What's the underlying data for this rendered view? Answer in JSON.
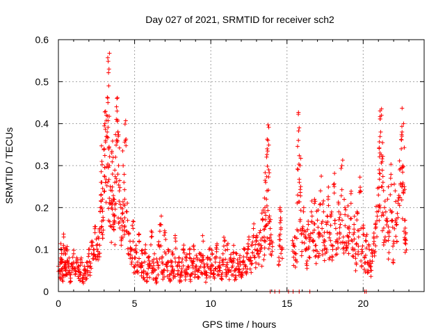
{
  "chart_data": {
    "type": "scatter",
    "title": "Day 027 of 2021, SRMTID for receiver sch2",
    "xlabel": "GPS time / hours",
    "ylabel": "SRMTID / TECUs",
    "xlim": [
      0,
      24
    ],
    "ylim": [
      0,
      0.6
    ],
    "xticks": [
      0,
      5,
      10,
      15,
      20
    ],
    "yticks": [
      0,
      0.1,
      0.2,
      0.3,
      0.4,
      0.5,
      0.6
    ],
    "xtick_labels": [
      "0",
      "5",
      "10",
      "15",
      "20"
    ],
    "ytick_labels": [
      "0",
      "0.1",
      "0.2",
      "0.3",
      "0.4",
      "0.5",
      "0.6"
    ],
    "grid": true,
    "marker": "+",
    "color": "#ff0000",
    "series": [
      {
        "name": "sch2",
        "points": [
          [
            0.0,
            0.06
          ],
          [
            0.1,
            0.05
          ],
          [
            0.15,
            0.08
          ],
          [
            0.2,
            0.1
          ],
          [
            0.25,
            0.07
          ],
          [
            0.3,
            0.04
          ],
          [
            0.35,
            0.13
          ],
          [
            0.4,
            0.06
          ],
          [
            0.45,
            0.09
          ],
          [
            0.5,
            0.05
          ],
          [
            0.55,
            0.1
          ],
          [
            0.6,
            0.07
          ],
          [
            0.7,
            0.08
          ],
          [
            0.8,
            0.04
          ],
          [
            0.9,
            0.06
          ],
          [
            1.0,
            0.09
          ],
          [
            1.1,
            0.05
          ],
          [
            1.2,
            0.07
          ],
          [
            1.3,
            0.06
          ],
          [
            1.4,
            0.04
          ],
          [
            1.5,
            0.08
          ],
          [
            1.6,
            0.03
          ],
          [
            1.7,
            0.06
          ],
          [
            1.8,
            0.05
          ],
          [
            1.9,
            0.07
          ],
          [
            2.0,
            0.09
          ],
          [
            2.1,
            0.06
          ],
          [
            2.2,
            0.12
          ],
          [
            2.3,
            0.1
          ],
          [
            2.4,
            0.14
          ],
          [
            2.5,
            0.11
          ],
          [
            2.6,
            0.13
          ],
          [
            2.7,
            0.15
          ],
          [
            2.75,
            0.2
          ],
          [
            2.8,
            0.26
          ],
          [
            2.85,
            0.31
          ],
          [
            2.9,
            0.22
          ],
          [
            2.95,
            0.17
          ],
          [
            3.0,
            0.34
          ],
          [
            3.05,
            0.4
          ],
          [
            3.1,
            0.36
          ],
          [
            3.15,
            0.42
          ],
          [
            3.2,
            0.38
          ],
          [
            3.25,
            0.45
          ],
          [
            3.3,
            0.49
          ],
          [
            3.32,
            0.53
          ],
          [
            3.35,
            0.3
          ],
          [
            3.4,
            0.25
          ],
          [
            3.45,
            0.21
          ],
          [
            3.5,
            0.33
          ],
          [
            3.55,
            0.28
          ],
          [
            3.6,
            0.22
          ],
          [
            3.65,
            0.18
          ],
          [
            3.7,
            0.26
          ],
          [
            3.75,
            0.32
          ],
          [
            3.8,
            0.41
          ],
          [
            3.85,
            0.43
          ],
          [
            3.9,
            0.38
          ],
          [
            3.95,
            0.3
          ],
          [
            4.0,
            0.24
          ],
          [
            4.1,
            0.2
          ],
          [
            4.2,
            0.17
          ],
          [
            4.25,
            0.3
          ],
          [
            4.3,
            0.26
          ],
          [
            4.35,
            0.22
          ],
          [
            4.4,
            0.36
          ],
          [
            4.5,
            0.19
          ],
          [
            4.6,
            0.14
          ],
          [
            4.7,
            0.12
          ],
          [
            4.8,
            0.1
          ],
          [
            4.9,
            0.15
          ],
          [
            5.0,
            0.08
          ],
          [
            5.1,
            0.11
          ],
          [
            5.2,
            0.07
          ],
          [
            5.3,
            0.12
          ],
          [
            5.4,
            0.06
          ],
          [
            5.5,
            0.09
          ],
          [
            5.6,
            0.05
          ],
          [
            5.7,
            0.1
          ],
          [
            5.8,
            0.04
          ],
          [
            5.9,
            0.08
          ],
          [
            6.0,
            0.06
          ],
          [
            6.1,
            0.13
          ],
          [
            6.2,
            0.05
          ],
          [
            6.3,
            0.09
          ],
          [
            6.4,
            0.03
          ],
          [
            6.5,
            0.07
          ],
          [
            6.6,
            0.11
          ],
          [
            6.7,
            0.16
          ],
          [
            6.8,
            0.08
          ],
          [
            6.9,
            0.05
          ],
          [
            7.0,
            0.14
          ],
          [
            7.1,
            0.06
          ],
          [
            7.2,
            0.1
          ],
          [
            7.3,
            0.04
          ],
          [
            7.4,
            0.07
          ],
          [
            7.5,
            0.09
          ],
          [
            7.6,
            0.05
          ],
          [
            7.7,
            0.12
          ],
          [
            7.8,
            0.06
          ],
          [
            7.9,
            0.08
          ],
          [
            8.0,
            0.04
          ],
          [
            8.1,
            0.07
          ],
          [
            8.2,
            0.1
          ],
          [
            8.3,
            0.05
          ],
          [
            8.4,
            0.08
          ],
          [
            8.5,
            0.06
          ],
          [
            8.6,
            0.09
          ],
          [
            8.7,
            0.04
          ],
          [
            8.8,
            0.07
          ],
          [
            8.9,
            0.1
          ],
          [
            9.0,
            0.06
          ],
          [
            9.1,
            0.08
          ],
          [
            9.2,
            0.05
          ],
          [
            9.3,
            0.09
          ],
          [
            9.4,
            0.07
          ],
          [
            9.5,
            0.12
          ],
          [
            9.6,
            0.06
          ],
          [
            9.7,
            0.04
          ],
          [
            9.8,
            0.08
          ],
          [
            9.9,
            0.1
          ],
          [
            10.0,
            0.06
          ],
          [
            10.1,
            0.09
          ],
          [
            10.2,
            0.05
          ],
          [
            10.3,
            0.07
          ],
          [
            10.4,
            0.11
          ],
          [
            10.5,
            0.06
          ],
          [
            10.6,
            0.08
          ],
          [
            10.7,
            0.04
          ],
          [
            10.8,
            0.09
          ],
          [
            10.9,
            0.12
          ],
          [
            11.0,
            0.06
          ],
          [
            11.1,
            0.1
          ],
          [
            11.2,
            0.05
          ],
          [
            11.3,
            0.08
          ],
          [
            11.4,
            0.07
          ],
          [
            11.5,
            0.11
          ],
          [
            11.6,
            0.05
          ],
          [
            11.7,
            0.09
          ],
          [
            11.8,
            0.06
          ],
          [
            11.9,
            0.08
          ],
          [
            12.0,
            0.04
          ],
          [
            12.1,
            0.07
          ],
          [
            12.2,
            0.1
          ],
          [
            12.3,
            0.06
          ],
          [
            12.4,
            0.09
          ],
          [
            12.5,
            0.13
          ],
          [
            12.6,
            0.08
          ],
          [
            12.7,
            0.11
          ],
          [
            12.8,
            0.15
          ],
          [
            12.9,
            0.1
          ],
          [
            13.0,
            0.12
          ],
          [
            13.1,
            0.09
          ],
          [
            13.2,
            0.14
          ],
          [
            13.3,
            0.11
          ],
          [
            13.4,
            0.17
          ],
          [
            13.5,
            0.13
          ],
          [
            13.55,
            0.2
          ],
          [
            13.6,
            0.26
          ],
          [
            13.65,
            0.22
          ],
          [
            13.7,
            0.34
          ],
          [
            13.75,
            0.36
          ],
          [
            13.8,
            0.29
          ],
          [
            13.85,
            0.18
          ],
          [
            13.9,
            0.15
          ],
          [
            14.0,
            0.12
          ],
          [
            14.5,
            0.11
          ],
          [
            14.55,
            0.2
          ],
          [
            14.6,
            0.17
          ],
          [
            14.65,
            0.1
          ],
          [
            15.4,
            0.11
          ],
          [
            15.5,
            0.13
          ],
          [
            15.6,
            0.09
          ],
          [
            15.7,
            0.23
          ],
          [
            15.75,
            0.36
          ],
          [
            15.8,
            0.39
          ],
          [
            15.85,
            0.3
          ],
          [
            15.9,
            0.25
          ],
          [
            16.0,
            0.15
          ],
          [
            16.1,
            0.2
          ],
          [
            16.2,
            0.13
          ],
          [
            16.3,
            0.1
          ],
          [
            16.4,
            0.16
          ],
          [
            16.5,
            0.12
          ],
          [
            16.6,
            0.19
          ],
          [
            16.7,
            0.14
          ],
          [
            16.8,
            0.21
          ],
          [
            16.9,
            0.11
          ],
          [
            17.0,
            0.17
          ],
          [
            17.1,
            0.13
          ],
          [
            17.2,
            0.24
          ],
          [
            17.3,
            0.15
          ],
          [
            17.4,
            0.19
          ],
          [
            17.5,
            0.12
          ],
          [
            17.6,
            0.16
          ],
          [
            17.7,
            0.22
          ],
          [
            17.8,
            0.14
          ],
          [
            17.9,
            0.18
          ],
          [
            18.0,
            0.1
          ],
          [
            18.1,
            0.25
          ],
          [
            18.2,
            0.15
          ],
          [
            18.3,
            0.12
          ],
          [
            18.4,
            0.19
          ],
          [
            18.5,
            0.16
          ],
          [
            18.6,
            0.3
          ],
          [
            18.7,
            0.13
          ],
          [
            18.8,
            0.2
          ],
          [
            18.9,
            0.11
          ],
          [
            19.0,
            0.18
          ],
          [
            19.1,
            0.14
          ],
          [
            19.2,
            0.21
          ],
          [
            19.3,
            0.12
          ],
          [
            19.4,
            0.16
          ],
          [
            19.5,
            0.09
          ],
          [
            19.6,
            0.19
          ],
          [
            19.7,
            0.13
          ],
          [
            19.8,
            0.24
          ],
          [
            19.9,
            0.1
          ],
          [
            20.0,
            0.15
          ],
          [
            20.1,
            0.08
          ],
          [
            20.2,
            0.12
          ],
          [
            20.3,
            0.07
          ],
          [
            20.4,
            0.1
          ],
          [
            20.5,
            0.06
          ],
          [
            20.6,
            0.09
          ],
          [
            20.7,
            0.13
          ],
          [
            20.8,
            0.16
          ],
          [
            20.9,
            0.19
          ],
          [
            21.0,
            0.23
          ],
          [
            21.05,
            0.29
          ],
          [
            21.1,
            0.33
          ],
          [
            21.15,
            0.38
          ],
          [
            21.2,
            0.42
          ],
          [
            21.25,
            0.31
          ],
          [
            21.3,
            0.26
          ],
          [
            21.4,
            0.2
          ],
          [
            21.5,
            0.17
          ],
          [
            21.6,
            0.22
          ],
          [
            21.7,
            0.14
          ],
          [
            21.8,
            0.27
          ],
          [
            21.9,
            0.19
          ],
          [
            22.0,
            0.12
          ],
          [
            22.1,
            0.24
          ],
          [
            22.2,
            0.16
          ],
          [
            22.3,
            0.21
          ],
          [
            22.4,
            0.29
          ],
          [
            22.5,
            0.34
          ],
          [
            22.55,
            0.38
          ],
          [
            22.6,
            0.3
          ],
          [
            22.65,
            0.4
          ],
          [
            22.7,
            0.25
          ],
          [
            22.75,
            0.17
          ],
          [
            22.8,
            0.14
          ]
        ],
        "zeros": [
          13.9,
          14.2,
          14.5,
          15.1,
          15.4,
          15.8,
          16.5,
          20.1,
          20.2
        ]
      }
    ]
  }
}
